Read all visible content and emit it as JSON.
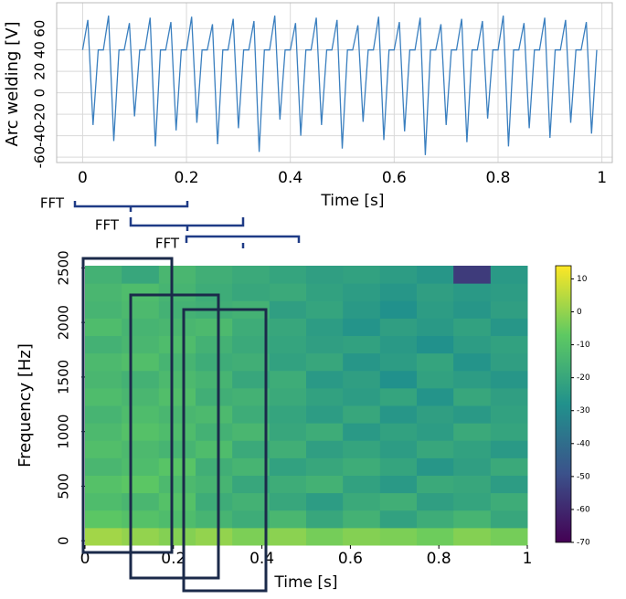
{
  "chart_data": [
    {
      "type": "line",
      "ylabel": "Arc welding [V]",
      "xlabel": "Time [s]",
      "color": "#3a7fbf",
      "grid": true,
      "xlim": [
        -0.05,
        1.02
      ],
      "ylim": [
        -65,
        84
      ],
      "xticks": [
        0,
        0.2,
        0.4,
        0.6,
        0.8,
        1
      ],
      "yticks": [
        -60,
        -40,
        -20,
        0,
        20,
        40,
        60
      ],
      "x": [
        0,
        0.01,
        0.02,
        0.03,
        0.04,
        0.05,
        0.06,
        0.07,
        0.08,
        0.09,
        0.1,
        0.11,
        0.12,
        0.13,
        0.14,
        0.15,
        0.16,
        0.17,
        0.18,
        0.19,
        0.2,
        0.21,
        0.22,
        0.23,
        0.24,
        0.25,
        0.26,
        0.27,
        0.28,
        0.29,
        0.3,
        0.31,
        0.32,
        0.33,
        0.34,
        0.35,
        0.36,
        0.37,
        0.38,
        0.39,
        0.4,
        0.41,
        0.42,
        0.43,
        0.44,
        0.45,
        0.46,
        0.47,
        0.48,
        0.49,
        0.5,
        0.51,
        0.52,
        0.53,
        0.54,
        0.55,
        0.56,
        0.57,
        0.58,
        0.59,
        0.6,
        0.61,
        0.62,
        0.63,
        0.64,
        0.65,
        0.66,
        0.67,
        0.68,
        0.69,
        0.7,
        0.71,
        0.72,
        0.73,
        0.74,
        0.75,
        0.76,
        0.77,
        0.78,
        0.79,
        0.8,
        0.81,
        0.82,
        0.83,
        0.84,
        0.85,
        0.86,
        0.87,
        0.88,
        0.89,
        0.9,
        0.91,
        0.92,
        0.93,
        0.94,
        0.95,
        0.96,
        0.97,
        0.98,
        0.99
      ],
      "values": [
        40,
        68,
        -30,
        40,
        40,
        72,
        -45,
        40,
        40,
        65,
        -22,
        40,
        40,
        70,
        -50,
        40,
        40,
        66,
        -35,
        40,
        40,
        71,
        -28,
        40,
        40,
        64,
        -48,
        40,
        40,
        69,
        -33,
        40,
        40,
        67,
        -55,
        40,
        40,
        72,
        -25,
        40,
        40,
        65,
        -40,
        40,
        40,
        70,
        -30,
        40,
        40,
        68,
        -52,
        40,
        40,
        63,
        -27,
        40,
        40,
        71,
        -44,
        40,
        40,
        66,
        -36,
        40,
        40,
        70,
        -58,
        40,
        40,
        64,
        -30,
        40,
        40,
        69,
        -46,
        40,
        40,
        67,
        -24,
        40,
        40,
        72,
        -50,
        40,
        40,
        65,
        -33,
        40,
        40,
        70,
        -42,
        40,
        40,
        68,
        -28,
        40,
        40,
        66,
        -38,
        40
      ],
      "annotations": [
        "FFT",
        "FFT",
        "FFT"
      ]
    },
    {
      "type": "heatmap",
      "ylabel": "Frequency [Hz]",
      "xlabel": "Time [s]",
      "xlim": [
        0,
        1
      ],
      "ylim": [
        -40,
        2520
      ],
      "xticks": [
        0,
        0.2,
        0.4,
        0.6,
        0.8,
        1
      ],
      "yticks": [
        0,
        500,
        1000,
        1500,
        2000,
        2500
      ],
      "xbins": [
        0,
        0.083,
        0.167,
        0.25,
        0.333,
        0.417,
        0.5,
        0.583,
        0.667,
        0.75,
        0.833,
        0.917,
        1
      ],
      "ybins": [
        -40,
        120,
        280,
        440,
        600,
        760,
        920,
        1080,
        1240,
        1400,
        1560,
        1720,
        1880,
        2040,
        2200,
        2360,
        2520
      ],
      "colorscale": [
        "#440154",
        "#3b528b",
        "#21918c",
        "#5ec962",
        "#fde725"
      ],
      "clim": [
        -70,
        14
      ],
      "cticks": [
        -70,
        -60,
        -50,
        -40,
        -30,
        -20,
        -10,
        0,
        10
      ],
      "values": [
        [
          2,
          0,
          -2,
          0,
          -3,
          -1,
          -4,
          -2,
          -3,
          -5,
          -2,
          -4
        ],
        [
          -8,
          -10,
          -12,
          -15,
          -18,
          -14,
          -20,
          -16,
          -22,
          -18,
          -15,
          -20
        ],
        [
          -12,
          -14,
          -10,
          -18,
          -16,
          -20,
          -24,
          -19,
          -17,
          -23,
          -21,
          -18
        ],
        [
          -10,
          -8,
          -13,
          -15,
          -20,
          -18,
          -16,
          -22,
          -25,
          -19,
          -20,
          -24
        ],
        [
          -14,
          -12,
          -9,
          -17,
          -15,
          -22,
          -20,
          -18,
          -21,
          -26,
          -23,
          -19
        ],
        [
          -11,
          -13,
          -15,
          -12,
          -19,
          -17,
          -23,
          -21,
          -24,
          -20,
          -22,
          -25
        ],
        [
          -13,
          -10,
          -12,
          -16,
          -14,
          -20,
          -18,
          -25,
          -22,
          -24,
          -19,
          -21
        ],
        [
          -15,
          -12,
          -14,
          -13,
          -18,
          -21,
          -24,
          -20,
          -26,
          -23,
          -25,
          -22
        ],
        [
          -12,
          -14,
          -11,
          -17,
          -16,
          -19,
          -22,
          -24,
          -21,
          -27,
          -20,
          -23
        ],
        [
          -14,
          -16,
          -13,
          -15,
          -20,
          -18,
          -25,
          -23,
          -28,
          -22,
          -24,
          -26
        ],
        [
          -13,
          -11,
          -15,
          -18,
          -17,
          -22,
          -20,
          -26,
          -24,
          -21,
          -27,
          -23
        ],
        [
          -16,
          -14,
          -12,
          -16,
          -19,
          -21,
          -23,
          -22,
          -25,
          -28,
          -24,
          -22
        ],
        [
          -12,
          -15,
          -14,
          -13,
          -18,
          -20,
          -24,
          -27,
          -23,
          -25,
          -22,
          -26
        ],
        [
          -15,
          -13,
          -16,
          -17,
          -16,
          -23,
          -21,
          -25,
          -28,
          -24,
          -26,
          -23
        ],
        [
          -14,
          -12,
          -15,
          -18,
          -20,
          -19,
          -22,
          -24,
          -26,
          -23,
          -25,
          -24
        ],
        [
          -16,
          -20,
          -14,
          -17,
          -19,
          -21,
          -23,
          -22,
          -24,
          -26,
          -55,
          -25
        ]
      ]
    }
  ]
}
